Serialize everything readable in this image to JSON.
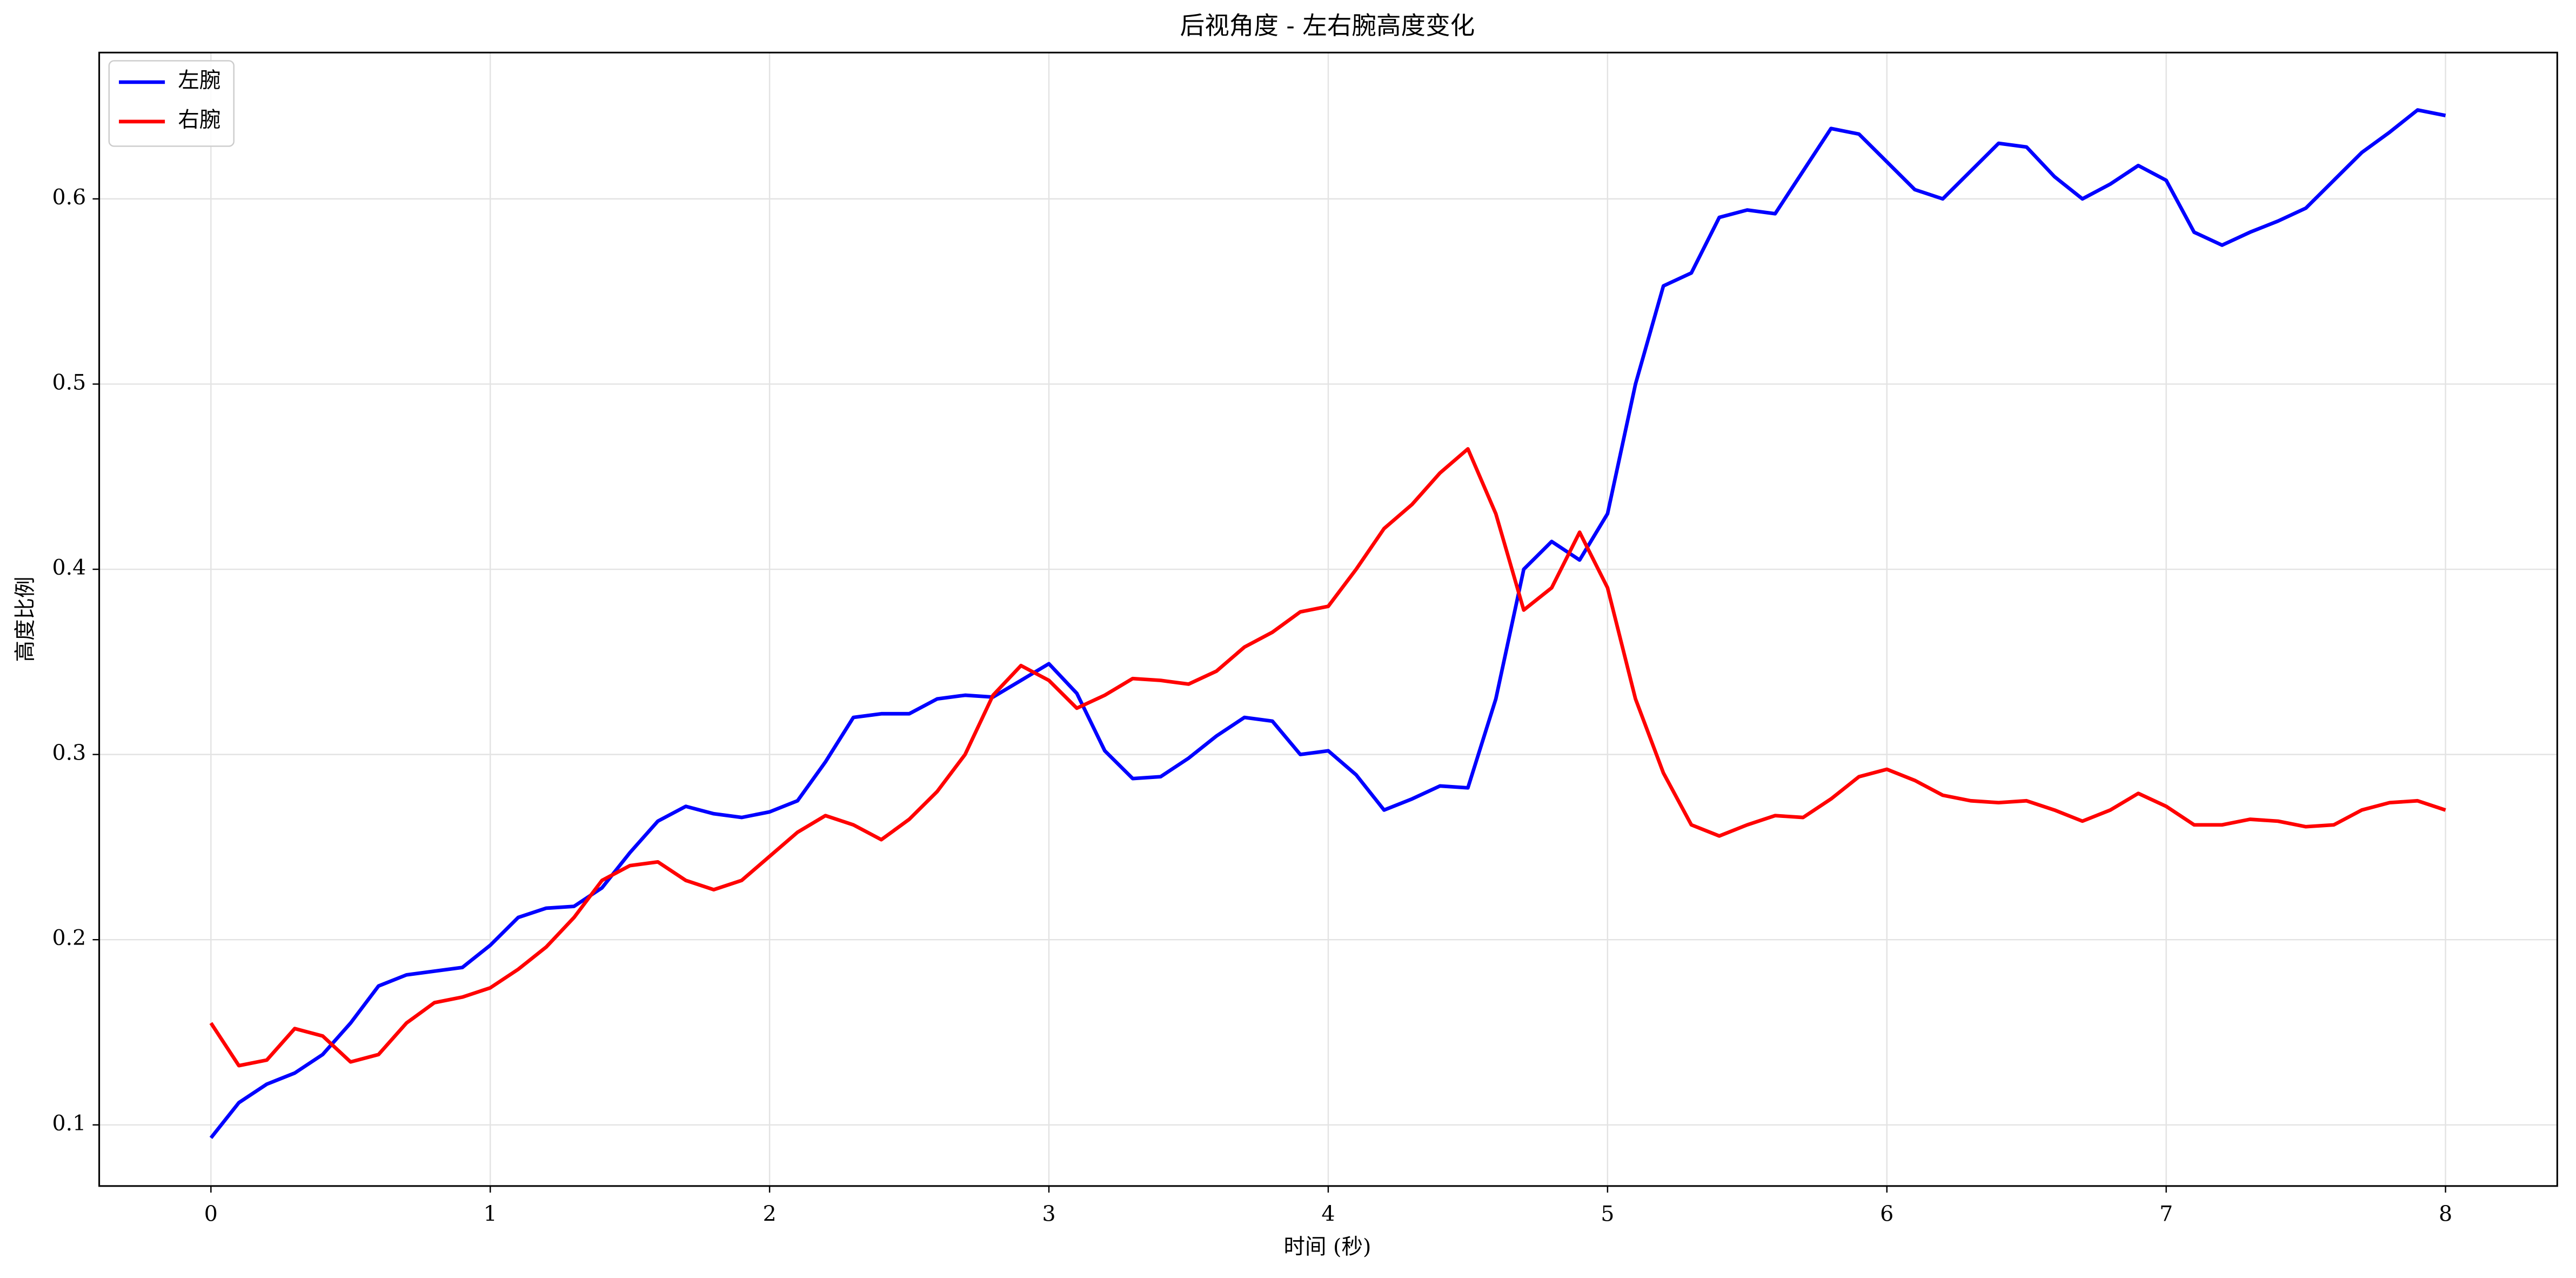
{
  "chart_data": {
    "type": "line",
    "title": "后视角度 - 左右腕高度变化",
    "x_label": "时间 (秒)",
    "y_label": "高度比例",
    "x": [
      0,
      0.1,
      0.2,
      0.3,
      0.4,
      0.5,
      0.6,
      0.7,
      0.8,
      0.9,
      1,
      1.1,
      1.2,
      1.3,
      1.4,
      1.5,
      1.6,
      1.7,
      1.8,
      1.9,
      2,
      2.1,
      2.2,
      2.3,
      2.4,
      2.5,
      2.6,
      2.7,
      2.8,
      2.9,
      3,
      3.1,
      3.2,
      3.3,
      3.4,
      3.5,
      3.6,
      3.7,
      3.8,
      3.9,
      4,
      4.1,
      4.2,
      4.3,
      4.4,
      4.5,
      4.6,
      4.7,
      4.8,
      4.9,
      5,
      5.1,
      5.2,
      5.3,
      5.4,
      5.5,
      5.6,
      5.7,
      5.8,
      5.9,
      6,
      6.1,
      6.2,
      6.3,
      6.4,
      6.5,
      6.6,
      6.7,
      6.8,
      6.9,
      7,
      7.1,
      7.2,
      7.3,
      7.4,
      7.5,
      7.6,
      7.7,
      7.8,
      7.9,
      8
    ],
    "series": [
      {
        "name": "左腕",
        "color": "#0000ff",
        "values": [
          0.093,
          0.112,
          0.122,
          0.128,
          0.138,
          0.155,
          0.175,
          0.181,
          0.183,
          0.185,
          0.197,
          0.212,
          0.217,
          0.218,
          0.228,
          0.247,
          0.264,
          0.272,
          0.268,
          0.266,
          0.269,
          0.275,
          0.296,
          0.32,
          0.322,
          0.322,
          0.33,
          0.332,
          0.331,
          0.34,
          0.349,
          0.333,
          0.302,
          0.287,
          0.288,
          0.298,
          0.31,
          0.32,
          0.318,
          0.3,
          0.302,
          0.289,
          0.27,
          0.276,
          0.283,
          0.282,
          0.33,
          0.4,
          0.415,
          0.405,
          0.43,
          0.5,
          0.553,
          0.56,
          0.59,
          0.594,
          0.592,
          0.615,
          0.638,
          0.635,
          0.62,
          0.605,
          0.6,
          0.615,
          0.63,
          0.628,
          0.612,
          0.6,
          0.608,
          0.618,
          0.61,
          0.582,
          0.575,
          0.582,
          0.588,
          0.595,
          0.61,
          0.625,
          0.636,
          0.648,
          0.645
        ]
      },
      {
        "name": "右腕",
        "color": "#ff0000",
        "values": [
          0.155,
          0.132,
          0.135,
          0.152,
          0.148,
          0.134,
          0.138,
          0.155,
          0.166,
          0.169,
          0.174,
          0.184,
          0.196,
          0.212,
          0.232,
          0.24,
          0.242,
          0.232,
          0.227,
          0.232,
          0.245,
          0.258,
          0.267,
          0.262,
          0.254,
          0.265,
          0.28,
          0.3,
          0.332,
          0.348,
          0.34,
          0.325,
          0.332,
          0.341,
          0.34,
          0.338,
          0.345,
          0.358,
          0.366,
          0.377,
          0.38,
          0.4,
          0.422,
          0.435,
          0.452,
          0.465,
          0.43,
          0.378,
          0.39,
          0.42,
          0.39,
          0.33,
          0.29,
          0.262,
          0.256,
          0.262,
          0.267,
          0.266,
          0.276,
          0.288,
          0.292,
          0.286,
          0.278,
          0.275,
          0.274,
          0.275,
          0.27,
          0.264,
          0.27,
          0.279,
          0.272,
          0.262,
          0.262,
          0.265,
          0.264,
          0.261,
          0.262,
          0.27,
          0.274,
          0.275,
          0.27
        ]
      }
    ],
    "xlim": [
      -0.4,
      8.4
    ],
    "ylim": [
      0.067,
      0.679
    ],
    "xticks": [
      0,
      1,
      2,
      3,
      4,
      5,
      6,
      7,
      8
    ],
    "yticks": [
      0.1,
      0.2,
      0.3,
      0.4,
      0.5,
      0.6
    ],
    "grid": true,
    "legend": "upper left"
  }
}
